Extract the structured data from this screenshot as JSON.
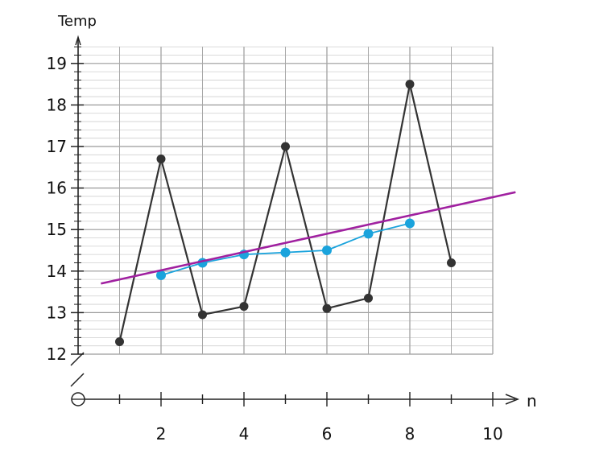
{
  "chart_data": {
    "type": "line",
    "ylabel": "Temp",
    "xlabel": "n",
    "xlim": [
      0,
      10
    ],
    "ylim": [
      12,
      19
    ],
    "x_ticks": [
      2,
      4,
      6,
      8,
      10
    ],
    "y_ticks": [
      12,
      13,
      14,
      15,
      16,
      17,
      18,
      19
    ],
    "grid": true,
    "series": [
      {
        "values": [
          {
            "x": 1,
            "y": 12.3
          },
          {
            "x": 2,
            "y": 16.7
          },
          {
            "x": 3,
            "y": 12.95
          },
          {
            "x": 4,
            "y": 13.15
          },
          {
            "x": 5,
            "y": 17.0
          },
          {
            "x": 6,
            "y": 13.1
          },
          {
            "x": 7,
            "y": 13.35
          },
          {
            "x": 8,
            "y": 18.5
          },
          {
            "x": 9,
            "y": 14.2
          }
        ],
        "color": "#333333"
      },
      {
        "values": [
          {
            "x": 2,
            "y": 13.9
          },
          {
            "x": 3,
            "y": 14.2
          },
          {
            "x": 4,
            "y": 14.4
          },
          {
            "x": 5,
            "y": 14.45
          },
          {
            "x": 6,
            "y": 14.5
          },
          {
            "x": 7,
            "y": 14.9
          },
          {
            "x": 8,
            "y": 15.15
          }
        ],
        "color": "#1aa3dc"
      },
      {
        "type": "trend-line",
        "values": [
          {
            "x": 0.55,
            "y": 13.7
          },
          {
            "x": 10.55,
            "y": 15.9
          }
        ],
        "color": "#a020a0"
      }
    ]
  }
}
